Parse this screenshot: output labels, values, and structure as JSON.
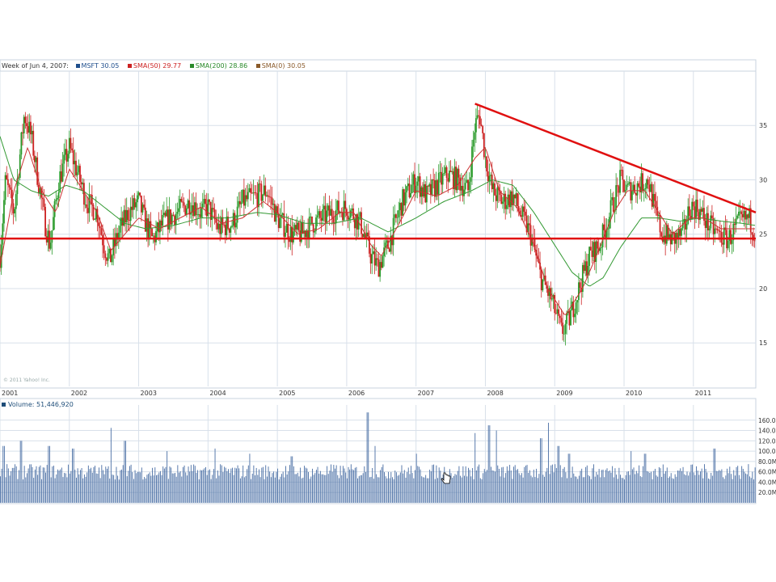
{
  "legend": {
    "date_text": "Week of Jun 4, 2007:",
    "items": [
      {
        "label": "MSFT 30.05",
        "color": "#1f4e8c"
      },
      {
        "label": "SMA(50) 29.77",
        "color": "#cc2222"
      },
      {
        "label": "SMA(200) 28.86",
        "color": "#2a8a2a"
      },
      {
        "label": "SMA(0) 30.05",
        "color": "#8a5a2a"
      }
    ]
  },
  "volume_legend": {
    "label": "Volume: 51,446,920",
    "color": "#1f4e79"
  },
  "copyright": "© 2011 Yahoo! Inc.",
  "cursor": "hand-pointer-icon",
  "colors": {
    "candle_up": "#2a9a2a",
    "candle_down": "#cc2222",
    "sma50": "#cc3333",
    "sma200": "#339933",
    "trendline": "#e01010",
    "volume": "#4a6fa5",
    "grid": "#d8e0ea"
  },
  "chart_data": [
    {
      "type": "line",
      "title": "",
      "price_axis": {
        "ticks": [
          15,
          20,
          25,
          30,
          35
        ],
        "labels": [
          "15",
          "20",
          "25",
          "30",
          "35"
        ],
        "ylim": [
          11,
          40
        ]
      },
      "x_axis": {
        "labels": [
          "2001",
          "2002",
          "2003",
          "2004",
          "2005",
          "2006",
          "2007",
          "2008",
          "2009",
          "2010",
          "2011"
        ],
        "range": [
          2001.0,
          2011.9
        ]
      },
      "grid": true,
      "price_anchors": [
        [
          2001.0,
          23
        ],
        [
          2001.08,
          30
        ],
        [
          2001.2,
          27
        ],
        [
          2001.35,
          36
        ],
        [
          2001.45,
          34
        ],
        [
          2001.55,
          30
        ],
        [
          2001.65,
          26
        ],
        [
          2001.72,
          24
        ],
        [
          2001.85,
          30
        ],
        [
          2002.0,
          33
        ],
        [
          2002.1,
          31
        ],
        [
          2002.25,
          28
        ],
        [
          2002.4,
          27
        ],
        [
          2002.5,
          24
        ],
        [
          2002.58,
          22.5
        ],
        [
          2002.7,
          25
        ],
        [
          2002.85,
          27
        ],
        [
          2003.0,
          28
        ],
        [
          2003.1,
          26
        ],
        [
          2003.2,
          24.5
        ],
        [
          2003.35,
          26
        ],
        [
          2003.55,
          27
        ],
        [
          2003.75,
          28
        ],
        [
          2003.9,
          27
        ],
        [
          2004.0,
          27.5
        ],
        [
          2004.15,
          25.5
        ],
        [
          2004.35,
          26
        ],
        [
          2004.5,
          28
        ],
        [
          2004.7,
          28.5
        ],
        [
          2004.85,
          29
        ],
        [
          2005.0,
          26.5
        ],
        [
          2005.2,
          25
        ],
        [
          2005.35,
          25
        ],
        [
          2005.5,
          26
        ],
        [
          2005.65,
          26.5
        ],
        [
          2005.8,
          27
        ],
        [
          2006.0,
          27.5
        ],
        [
          2006.2,
          26
        ],
        [
          2006.35,
          23
        ],
        [
          2006.45,
          22
        ],
        [
          2006.6,
          24
        ],
        [
          2006.8,
          28
        ],
        [
          2007.0,
          30
        ],
        [
          2007.15,
          28.5
        ],
        [
          2007.3,
          29.5
        ],
        [
          2007.45,
          30.5
        ],
        [
          2007.6,
          30
        ],
        [
          2007.75,
          29
        ],
        [
          2007.85,
          35
        ],
        [
          2007.92,
          36
        ],
        [
          2008.0,
          32
        ],
        [
          2008.1,
          29
        ],
        [
          2008.25,
          28
        ],
        [
          2008.4,
          28.5
        ],
        [
          2008.5,
          27
        ],
        [
          2008.65,
          25
        ],
        [
          2008.8,
          21
        ],
        [
          2008.95,
          19
        ],
        [
          2009.1,
          16
        ],
        [
          2009.2,
          17
        ],
        [
          2009.35,
          20
        ],
        [
          2009.5,
          23
        ],
        [
          2009.65,
          24
        ],
        [
          2009.8,
          27
        ],
        [
          2009.95,
          30
        ],
        [
          2010.05,
          29
        ],
        [
          2010.2,
          29.5
        ],
        [
          2010.35,
          30
        ],
        [
          2010.45,
          27
        ],
        [
          2010.55,
          25
        ],
        [
          2010.7,
          24.5
        ],
        [
          2010.85,
          25
        ],
        [
          2010.95,
          27.5
        ],
        [
          2011.05,
          27.5
        ],
        [
          2011.2,
          26
        ],
        [
          2011.35,
          25
        ],
        [
          2011.5,
          24.5
        ],
        [
          2011.65,
          26
        ],
        [
          2011.8,
          26.5
        ],
        [
          2011.9,
          25
        ]
      ],
      "sma50_anchors": [
        [
          2001.0,
          22
        ],
        [
          2001.2,
          29
        ],
        [
          2001.4,
          33
        ],
        [
          2001.6,
          29
        ],
        [
          2001.8,
          27
        ],
        [
          2002.0,
          31
        ],
        [
          2002.2,
          29
        ],
        [
          2002.4,
          27
        ],
        [
          2002.6,
          23.5
        ],
        [
          2002.8,
          25
        ],
        [
          2003.0,
          26.5
        ],
        [
          2003.3,
          25.5
        ],
        [
          2003.6,
          26.5
        ],
        [
          2003.9,
          27.5
        ],
        [
          2004.2,
          26
        ],
        [
          2004.5,
          26.5
        ],
        [
          2004.8,
          28
        ],
        [
          2005.0,
          27
        ],
        [
          2005.3,
          25
        ],
        [
          2005.6,
          25.5
        ],
        [
          2005.9,
          27
        ],
        [
          2006.1,
          27
        ],
        [
          2006.35,
          24
        ],
        [
          2006.5,
          23
        ],
        [
          2006.8,
          26.5
        ],
        [
          2007.0,
          29
        ],
        [
          2007.3,
          28.5
        ],
        [
          2007.6,
          29.5
        ],
        [
          2007.85,
          32
        ],
        [
          2008.0,
          33
        ],
        [
          2008.2,
          29
        ],
        [
          2008.45,
          27.5
        ],
        [
          2008.7,
          24
        ],
        [
          2008.9,
          20
        ],
        [
          2009.15,
          17.5
        ],
        [
          2009.4,
          20
        ],
        [
          2009.6,
          23
        ],
        [
          2009.85,
          27
        ],
        [
          2010.05,
          29
        ],
        [
          2010.3,
          29
        ],
        [
          2010.5,
          27
        ],
        [
          2010.7,
          25
        ],
        [
          2010.95,
          26.5
        ],
        [
          2011.15,
          26.5
        ],
        [
          2011.4,
          25.5
        ],
        [
          2011.7,
          25.5
        ],
        [
          2011.9,
          25.5
        ]
      ],
      "sma200_anchors": [
        [
          2001.0,
          34
        ],
        [
          2001.2,
          30
        ],
        [
          2001.45,
          29
        ],
        [
          2001.7,
          28.5
        ],
        [
          2001.95,
          29.5
        ],
        [
          2002.2,
          29
        ],
        [
          2002.5,
          27.5
        ],
        [
          2002.8,
          26
        ],
        [
          2003.1,
          25.5
        ],
        [
          2003.5,
          25.8
        ],
        [
          2003.9,
          26.5
        ],
        [
          2004.3,
          26.5
        ],
        [
          2004.7,
          27
        ],
        [
          2005.0,
          26.8
        ],
        [
          2005.4,
          26
        ],
        [
          2005.8,
          26
        ],
        [
          2006.2,
          26.5
        ],
        [
          2006.6,
          25.2
        ],
        [
          2007.0,
          26.5
        ],
        [
          2007.4,
          28
        ],
        [
          2007.8,
          29
        ],
        [
          2008.1,
          30
        ],
        [
          2008.4,
          29.5
        ],
        [
          2008.7,
          27
        ],
        [
          2009.0,
          24
        ],
        [
          2009.25,
          21.5
        ],
        [
          2009.5,
          20.2
        ],
        [
          2009.7,
          21
        ],
        [
          2009.95,
          23.8
        ],
        [
          2010.25,
          26.5
        ],
        [
          2010.5,
          26.5
        ],
        [
          2010.8,
          26.2
        ],
        [
          2011.1,
          26.5
        ],
        [
          2011.4,
          26.2
        ],
        [
          2011.7,
          26
        ],
        [
          2011.9,
          25.8
        ]
      ],
      "trendlines": [
        {
          "from": [
            2007.85,
            37
          ],
          "to": [
            2011.9,
            27
          ]
        },
        {
          "from": [
            2001.0,
            24.6
          ],
          "to": [
            2011.9,
            24.6
          ]
        }
      ]
    },
    {
      "type": "bar",
      "title": "Volume",
      "y_axis": {
        "ticks": [
          20,
          40,
          60,
          80,
          100,
          120,
          140,
          160
        ],
        "labels": [
          "20.0M",
          "40.0M",
          "60.0M",
          "80.0M",
          "100.0M",
          "120.0M",
          "140.0M",
          "160.0M"
        ],
        "ylim": [
          0,
          180
        ],
        "unit": "M"
      },
      "x_range": [
        2001.0,
        2011.9
      ],
      "spikes": [
        [
          2001.05,
          110
        ],
        [
          2001.3,
          120
        ],
        [
          2001.7,
          110
        ],
        [
          2002.05,
          105
        ],
        [
          2002.6,
          145
        ],
        [
          2002.8,
          120
        ],
        [
          2003.4,
          100
        ],
        [
          2004.1,
          105
        ],
        [
          2004.6,
          95
        ],
        [
          2005.2,
          90
        ],
        [
          2006.3,
          175
        ],
        [
          2006.4,
          110
        ],
        [
          2007.0,
          95
        ],
        [
          2007.85,
          135
        ],
        [
          2008.05,
          150
        ],
        [
          2008.15,
          140
        ],
        [
          2008.8,
          125
        ],
        [
          2008.9,
          155
        ],
        [
          2009.05,
          110
        ],
        [
          2009.2,
          95
        ],
        [
          2010.1,
          100
        ],
        [
          2010.3,
          95
        ],
        [
          2011.3,
          105
        ]
      ]
    }
  ]
}
